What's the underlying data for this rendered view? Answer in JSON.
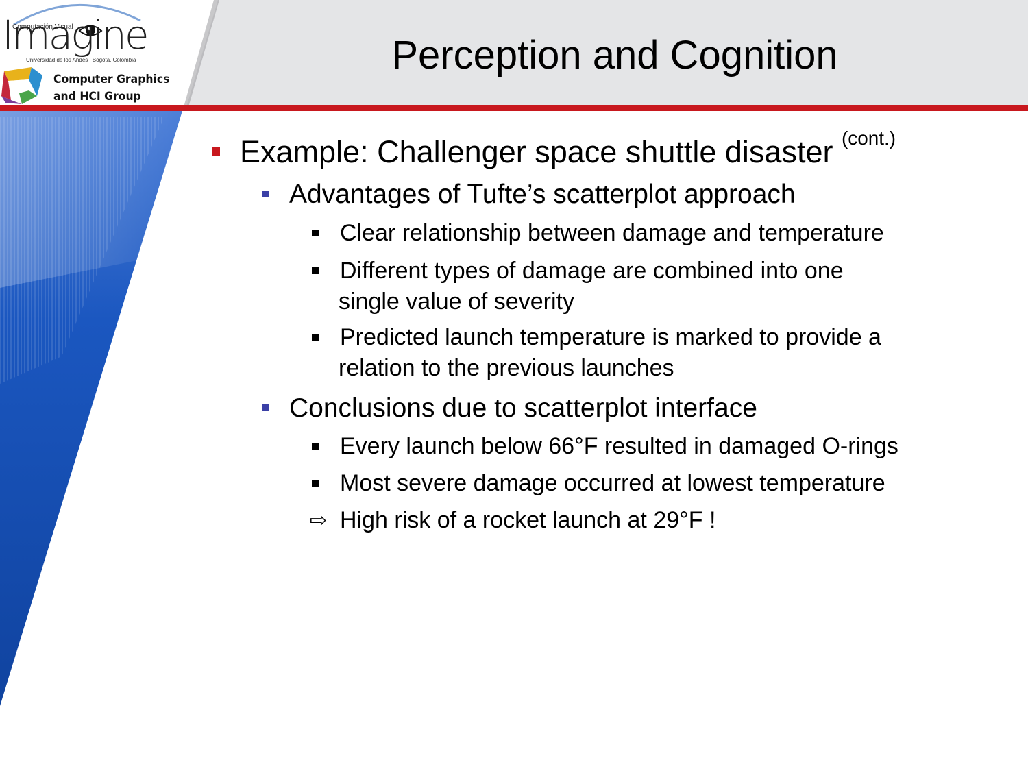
{
  "title": "Perception and Cognition",
  "logo": {
    "tagline": "Computación Visual",
    "wordmark": "Imagine",
    "institution": "Universidad de los Andes | Bogotá, Colombia",
    "group_line1": "Computer Graphics",
    "group_line2": "and HCI Group"
  },
  "bullets": {
    "main": {
      "text": "Example: Challenger space shuttle disaster",
      "sup": "(cont.)"
    },
    "advantages": {
      "heading": "Advantages of Tufte’s scatterplot approach",
      "items": [
        {
          "line1": "Clear relationship between damage and temperature"
        },
        {
          "line1": "Different types of damage are combined into one",
          "line2": "single value of severity"
        },
        {
          "line1": "Predicted launch temperature is marked to provide a",
          "line2": "relation to the previous launches"
        }
      ]
    },
    "conclusions": {
      "heading": "Conclusions due to scatterplot interface",
      "items": [
        {
          "line1": "Every launch below 66°F resulted in damaged O-rings"
        },
        {
          "line1": "Most severe damage occurred at lowest temperature"
        }
      ],
      "arrow_item": "High risk of a rocket launch at 29°F !"
    }
  },
  "colors": {
    "header_bg": "#e4e5e7",
    "accent_red": "#c8181e",
    "sidebar_blue": "#1546a3",
    "level2_bullet": "#3b40a6"
  }
}
